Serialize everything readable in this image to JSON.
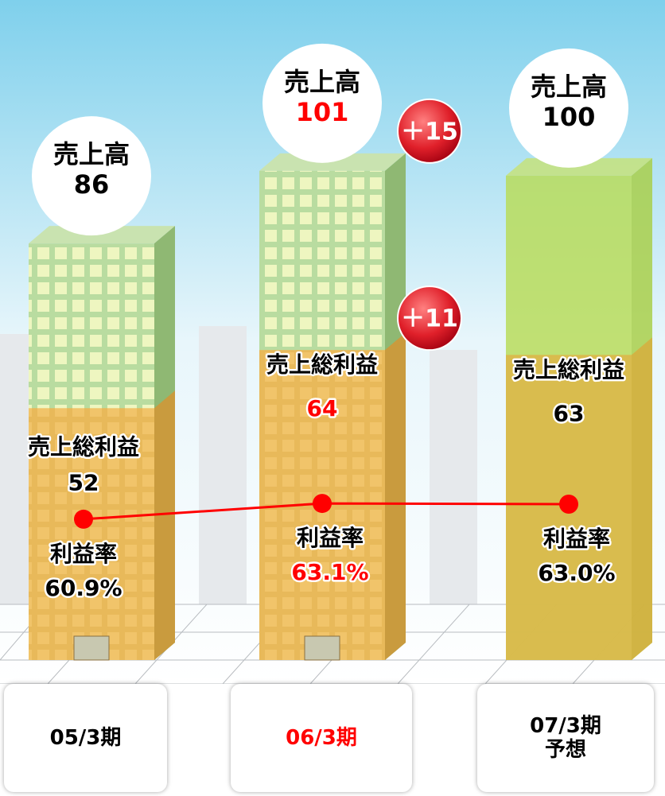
{
  "chart_data": {
    "type": "bar",
    "categories": [
      "05/3期",
      "06/3期",
      "07/3期\n予想"
    ],
    "series": [
      {
        "name": "売上高",
        "color": "#a8d08d",
        "values": [
          86,
          101,
          100
        ]
      },
      {
        "name": "売上総利益",
        "color": "#e8b95a",
        "values": [
          52,
          64,
          63
        ]
      },
      {
        "name": "利益率",
        "color": "#ff0000",
        "type": "line",
        "axis": "y2",
        "values": [
          60.9,
          63.1,
          63.0
        ],
        "value_labels": [
          "60.9%",
          "63.1%",
          "63.0%"
        ]
      }
    ],
    "annotations": [
      {
        "text": "＋15"
      },
      {
        "text": "＋11"
      }
    ],
    "highlight": 1,
    "highlight_color": "#ff0000",
    "forecast": 2,
    "ylim": [
      0,
      110
    ],
    "y2lim": [
      55,
      70
    ]
  }
}
